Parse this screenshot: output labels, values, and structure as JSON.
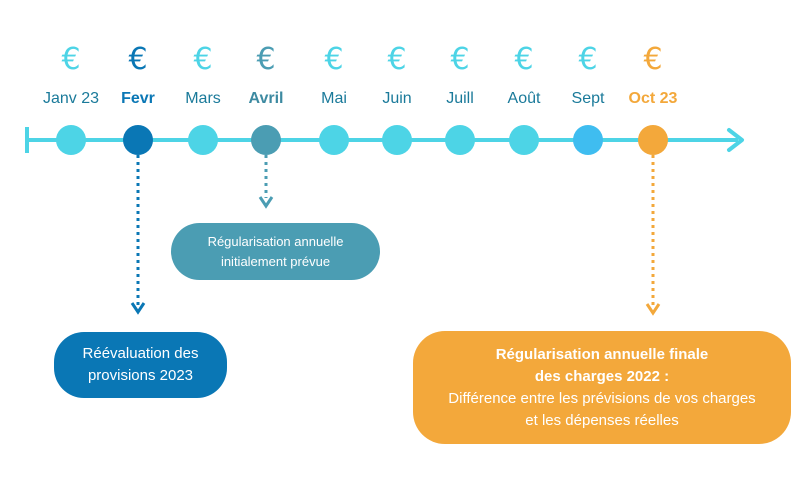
{
  "months": [
    {
      "label": "Janv 23",
      "euro": "€",
      "bold": false,
      "euro_color": "#4dd4e6",
      "label_color": "#1a7a9a",
      "dot_color": "#4dd4e6"
    },
    {
      "label": "Fevr",
      "euro": "€",
      "bold": true,
      "euro_color": "#0a77b5",
      "label_color": "#0a77b5",
      "dot_color": "#0a77b5"
    },
    {
      "label": "Mars",
      "euro": "€",
      "bold": false,
      "euro_color": "#4dd4e6",
      "label_color": "#1a7a9a",
      "dot_color": "#4dd4e6"
    },
    {
      "label": "Avril",
      "euro": "€",
      "bold": true,
      "euro_color": "#4b9db3",
      "label_color": "#3d8aa1",
      "dot_color": "#4b9db3"
    },
    {
      "label": "Mai",
      "euro": "€",
      "bold": false,
      "euro_color": "#4dd4e6",
      "label_color": "#1a7a9a",
      "dot_color": "#4dd4e6"
    },
    {
      "label": "Juin",
      "euro": "€",
      "bold": false,
      "euro_color": "#4dd4e6",
      "label_color": "#1a7a9a",
      "dot_color": "#4dd4e6"
    },
    {
      "label": "Juill",
      "euro": "€",
      "bold": false,
      "euro_color": "#4dd4e6",
      "label_color": "#1a7a9a",
      "dot_color": "#4dd4e6"
    },
    {
      "label": "Août",
      "euro": "€",
      "bold": false,
      "euro_color": "#4dd4e6",
      "label_color": "#1a7a9a",
      "dot_color": "#4dd4e6"
    },
    {
      "label": "Sept",
      "euro": "€",
      "bold": false,
      "euro_color": "#4dd4e6",
      "label_color": "#1a7a9a",
      "dot_color": "#3fbdf0"
    },
    {
      "label": "Oct 23",
      "euro": "€",
      "bold": true,
      "euro_color": "#f3a83b",
      "label_color": "#f3a83b",
      "dot_color": "#f3a83b"
    }
  ],
  "timeline_color": "#4dd4e6",
  "boxes": {
    "initial": {
      "line1": "Régularisation annuelle",
      "line2": "initialement prévue",
      "color": "#4b9db3"
    },
    "reeval": {
      "line1": "Réévaluation des",
      "line2": "provisions 2023",
      "color": "#0a77b5"
    },
    "final": {
      "title1": "Régularisation annuelle finale",
      "title2": "des charges 2022 :",
      "text1": "Différence entre les prévisions de vos charges",
      "text2": "et les dépenses réelles",
      "color": "#f3a83b"
    }
  }
}
